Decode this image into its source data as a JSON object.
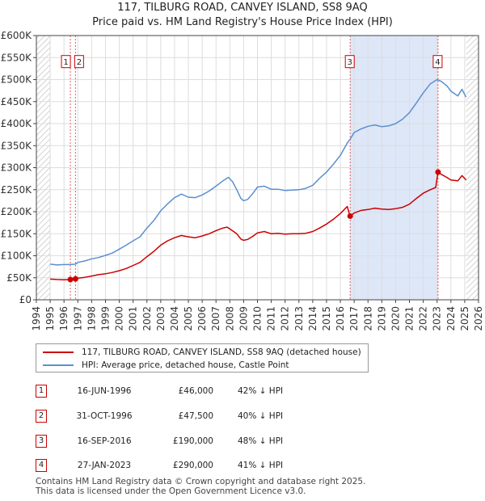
{
  "chart_data": {
    "type": "line",
    "title": "117, TILBURG ROAD, CANVEY ISLAND, SS8 9AQ",
    "subtitle": "Price paid vs. HM Land Registry's House Price Index (HPI)",
    "xlim": [
      1994,
      2026
    ],
    "ylim": [
      0,
      600000
    ],
    "x_ticks": [
      "1994",
      "1995",
      "1996",
      "1997",
      "1998",
      "1999",
      "2000",
      "2001",
      "2002",
      "2003",
      "2004",
      "2005",
      "2006",
      "2007",
      "2008",
      "2009",
      "2010",
      "2011",
      "2012",
      "2013",
      "2014",
      "2015",
      "2016",
      "2017",
      "2018",
      "2019",
      "2020",
      "2021",
      "2022",
      "2023",
      "2024",
      "2025",
      "2026"
    ],
    "y_ticks": [
      {
        "value": 0,
        "label": "£0"
      },
      {
        "value": 50000,
        "label": "£50K"
      },
      {
        "value": 100000,
        "label": "£100K"
      },
      {
        "value": 150000,
        "label": "£150K"
      },
      {
        "value": 200000,
        "label": "£200K"
      },
      {
        "value": 250000,
        "label": "£250K"
      },
      {
        "value": 300000,
        "label": "£300K"
      },
      {
        "value": 350000,
        "label": "£350K"
      },
      {
        "value": 400000,
        "label": "£400K"
      },
      {
        "value": 450000,
        "label": "£450K"
      },
      {
        "value": 500000,
        "label": "£500K"
      },
      {
        "value": 550000,
        "label": "£550K"
      },
      {
        "value": 600000,
        "label": "£600K"
      }
    ],
    "data_range": [
      1995.0,
      2025.1
    ],
    "series": [
      {
        "name": "117, TILBURG ROAD, CANVEY ISLAND, SS8 9AQ (detached house)",
        "color": "#cc0000",
        "points": [
          [
            1995.0,
            47000
          ],
          [
            1995.5,
            46000
          ],
          [
            1996.0,
            45500
          ],
          [
            1996.46,
            46000
          ],
          [
            1996.83,
            47500
          ],
          [
            1997.0,
            49000
          ],
          [
            1997.5,
            51000
          ],
          [
            1998.0,
            54000
          ],
          [
            1998.5,
            57000
          ],
          [
            1999.0,
            59000
          ],
          [
            1999.5,
            62000
          ],
          [
            2000.0,
            66000
          ],
          [
            2000.5,
            71000
          ],
          [
            2001.0,
            78000
          ],
          [
            2001.5,
            85000
          ],
          [
            2002.0,
            98000
          ],
          [
            2002.5,
            110000
          ],
          [
            2003.0,
            124000
          ],
          [
            2003.5,
            134000
          ],
          [
            2004.0,
            141000
          ],
          [
            2004.5,
            146000
          ],
          [
            2005.0,
            143000
          ],
          [
            2005.5,
            141000
          ],
          [
            2006.0,
            145000
          ],
          [
            2006.5,
            150000
          ],
          [
            2007.0,
            157000
          ],
          [
            2007.5,
            163000
          ],
          [
            2007.8,
            165000
          ],
          [
            2008.0,
            161000
          ],
          [
            2008.5,
            150000
          ],
          [
            2008.8,
            138000
          ],
          [
            2009.0,
            135000
          ],
          [
            2009.3,
            137000
          ],
          [
            2009.7,
            145000
          ],
          [
            2010.0,
            152000
          ],
          [
            2010.5,
            155000
          ],
          [
            2011.0,
            150000
          ],
          [
            2011.5,
            151000
          ],
          [
            2012.0,
            149000
          ],
          [
            2012.5,
            150000
          ],
          [
            2013.0,
            150000
          ],
          [
            2013.5,
            151000
          ],
          [
            2014.0,
            155000
          ],
          [
            2014.5,
            163000
          ],
          [
            2015.0,
            172000
          ],
          [
            2015.5,
            183000
          ],
          [
            2016.0,
            196000
          ],
          [
            2016.5,
            212000
          ],
          [
            2016.7,
            190000
          ],
          [
            2017.0,
            197000
          ],
          [
            2017.5,
            203000
          ],
          [
            2018.0,
            205000
          ],
          [
            2018.5,
            208000
          ],
          [
            2019.0,
            206000
          ],
          [
            2019.5,
            205000
          ],
          [
            2020.0,
            207000
          ],
          [
            2020.5,
            210000
          ],
          [
            2021.0,
            217000
          ],
          [
            2021.5,
            230000
          ],
          [
            2022.0,
            242000
          ],
          [
            2022.5,
            250000
          ],
          [
            2022.9,
            255000
          ],
          [
            2023.07,
            290000
          ],
          [
            2023.3,
            285000
          ],
          [
            2023.7,
            278000
          ],
          [
            2024.0,
            272000
          ],
          [
            2024.5,
            270000
          ],
          [
            2024.8,
            282000
          ],
          [
            2025.1,
            272000
          ]
        ]
      },
      {
        "name": "HPI: Average price, detached house, Castle Point",
        "color": "#5b8fd0",
        "points": [
          [
            1995.0,
            81000
          ],
          [
            1995.5,
            79000
          ],
          [
            1996.0,
            80000
          ],
          [
            1996.46,
            80000
          ],
          [
            1996.83,
            81000
          ],
          [
            1997.0,
            85000
          ],
          [
            1997.5,
            88000
          ],
          [
            1998.0,
            93000
          ],
          [
            1998.5,
            96000
          ],
          [
            1999.0,
            101000
          ],
          [
            1999.5,
            106000
          ],
          [
            2000.0,
            115000
          ],
          [
            2000.5,
            124000
          ],
          [
            2001.0,
            134000
          ],
          [
            2001.5,
            143000
          ],
          [
            2002.0,
            163000
          ],
          [
            2002.5,
            180000
          ],
          [
            2003.0,
            202000
          ],
          [
            2003.5,
            218000
          ],
          [
            2004.0,
            232000
          ],
          [
            2004.5,
            240000
          ],
          [
            2005.0,
            233000
          ],
          [
            2005.5,
            232000
          ],
          [
            2006.0,
            238000
          ],
          [
            2006.5,
            247000
          ],
          [
            2007.0,
            258000
          ],
          [
            2007.5,
            270000
          ],
          [
            2007.9,
            278000
          ],
          [
            2008.2,
            268000
          ],
          [
            2008.5,
            250000
          ],
          [
            2008.8,
            230000
          ],
          [
            2009.0,
            225000
          ],
          [
            2009.3,
            228000
          ],
          [
            2009.7,
            243000
          ],
          [
            2010.0,
            256000
          ],
          [
            2010.5,
            258000
          ],
          [
            2011.0,
            251000
          ],
          [
            2011.5,
            251000
          ],
          [
            2012.0,
            248000
          ],
          [
            2012.5,
            249000
          ],
          [
            2013.0,
            250000
          ],
          [
            2013.5,
            253000
          ],
          [
            2014.0,
            260000
          ],
          [
            2014.5,
            276000
          ],
          [
            2015.0,
            290000
          ],
          [
            2015.5,
            308000
          ],
          [
            2016.0,
            328000
          ],
          [
            2016.5,
            356000
          ],
          [
            2016.7,
            364000
          ],
          [
            2017.0,
            380000
          ],
          [
            2017.5,
            388000
          ],
          [
            2018.0,
            394000
          ],
          [
            2018.5,
            397000
          ],
          [
            2019.0,
            393000
          ],
          [
            2019.5,
            395000
          ],
          [
            2020.0,
            400000
          ],
          [
            2020.5,
            410000
          ],
          [
            2021.0,
            425000
          ],
          [
            2021.5,
            447000
          ],
          [
            2022.0,
            470000
          ],
          [
            2022.5,
            490000
          ],
          [
            2023.0,
            500000
          ],
          [
            2023.3,
            496000
          ],
          [
            2023.7,
            486000
          ],
          [
            2024.0,
            474000
          ],
          [
            2024.5,
            463000
          ],
          [
            2024.8,
            478000
          ],
          [
            2025.1,
            460000
          ]
        ]
      }
    ],
    "shaded_region": {
      "from": 2016.71,
      "to": 2023.07,
      "color": "#dde7f7"
    },
    "hatched_regions": [
      [
        1994,
        1995.0
      ],
      [
        2025.1,
        2026
      ]
    ],
    "transactions": [
      {
        "id": "1",
        "x": 1996.46,
        "price": 46000,
        "hpi_value": 80000
      },
      {
        "id": "2",
        "x": 1996.83,
        "price": 47500,
        "hpi_value": 81000
      },
      {
        "id": "3",
        "x": 2016.71,
        "price": 190000,
        "hpi_value": 364000
      },
      {
        "id": "4",
        "x": 2023.07,
        "price": 290000,
        "hpi_value": 500000
      }
    ],
    "marker_label_value": 540000
  },
  "legend": {
    "property_label": "117, TILBURG ROAD, CANVEY ISLAND, SS8 9AQ (detached house)",
    "property_color": "#cc0000",
    "hpi_label": "HPI: Average price, detached house, Castle Point",
    "hpi_color": "#5b8fd0"
  },
  "transactions_table": [
    {
      "num": "1",
      "date": "16-JUN-1996",
      "price": "£46,000",
      "hpi": "42% ↓ HPI"
    },
    {
      "num": "2",
      "date": "31-OCT-1996",
      "price": "£47,500",
      "hpi": "40% ↓ HPI"
    },
    {
      "num": "3",
      "date": "16-SEP-2016",
      "price": "£190,000",
      "hpi": "48% ↓ HPI"
    },
    {
      "num": "4",
      "date": "27-JAN-2023",
      "price": "£290,000",
      "hpi": "41% ↓ HPI"
    }
  ],
  "footer": {
    "line1": "Contains HM Land Registry data © Crown copyright and database right 2025.",
    "line2": "This data is licensed under the Open Government Licence v3.0."
  }
}
